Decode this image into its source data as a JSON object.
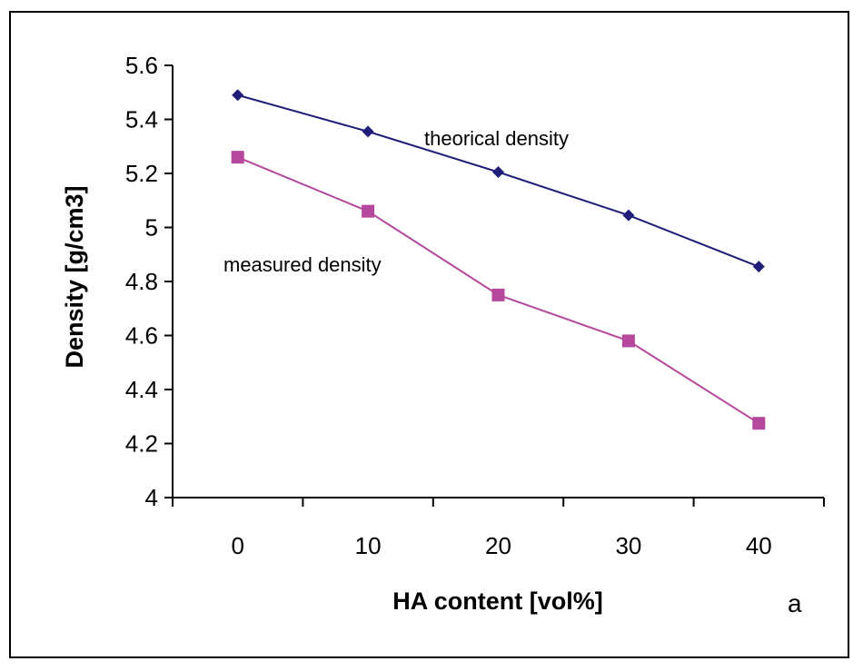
{
  "chart_data": {
    "type": "line",
    "title": "",
    "xlabel": "HA content [vol%]",
    "ylabel": "Density [g/cm3]",
    "categories": [
      "0",
      "10",
      "20",
      "30",
      "40"
    ],
    "x": [
      0,
      10,
      20,
      30,
      40
    ],
    "ylim": [
      4,
      5.6
    ],
    "yticks": [
      4,
      4.2,
      4.4,
      4.6,
      4.8,
      5,
      5.2,
      5.4,
      5.6
    ],
    "ytick_labels": [
      "4",
      "4.2",
      "4.4",
      "4.6",
      "4.8",
      "5",
      "5.2",
      "5.4",
      "5.6"
    ],
    "grid": false,
    "legend": "none",
    "series": [
      {
        "name": "theorical density",
        "values": [
          5.49,
          5.355,
          5.205,
          5.045,
          4.855
        ],
        "color": "#1f1f7a",
        "marker": "diamond"
      },
      {
        "name": "measured density",
        "values": [
          5.26,
          5.06,
          4.75,
          4.58,
          4.275
        ],
        "color": "#b5479c",
        "marker": "square"
      }
    ],
    "annotations": {
      "theoretical": "theorical density",
      "measured": "measured density",
      "panel": "a"
    }
  }
}
